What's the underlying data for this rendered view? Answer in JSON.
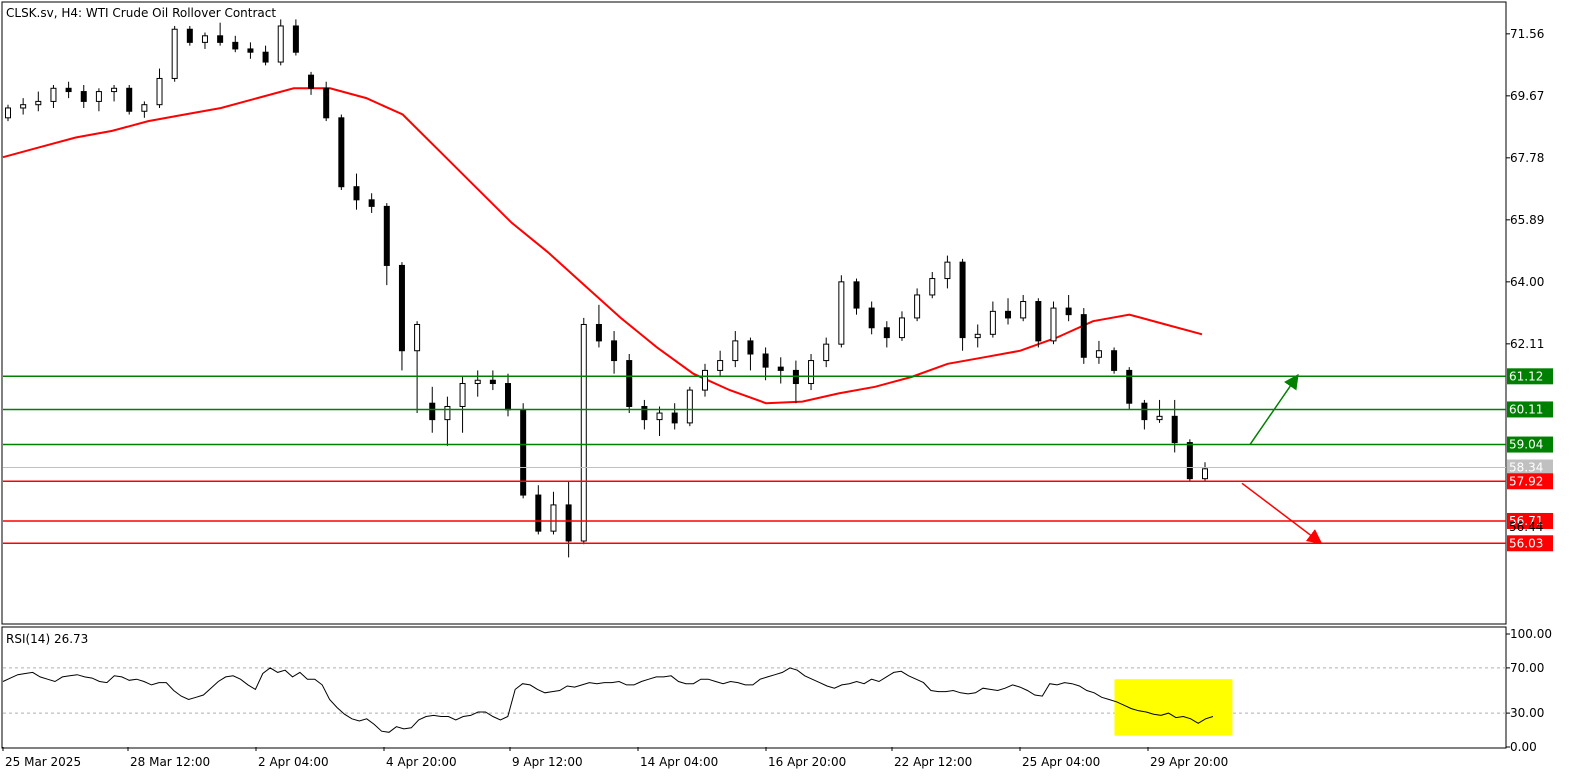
{
  "header": {
    "title": "CLSK.sv, H4:  WTI Crude Oil Rollover Contract"
  },
  "colors": {
    "support": "#ff0000",
    "resistance": "#008000",
    "ma_line": "#ff0000",
    "candle_bull": "#ffffff",
    "candle_bear": "#000000",
    "rsi_line": "#000000",
    "rsi_highlight": "#ffff00",
    "price_marker": "#c0c0c0"
  },
  "chart_data": [
    {
      "type": "candlestick",
      "title": "CLSK.sv, H4:  WTI Crude Oil Rollover Contract",
      "ylim": [
        53.6,
        72.5
      ],
      "y_ticks": [
        "71.56",
        "69.67",
        "67.78",
        "65.89",
        "64.00",
        "62.11"
      ],
      "x_ticks": [
        "25 Mar 2025",
        "28 Mar 12:00",
        "2 Apr 04:00",
        "4 Apr 20:00",
        "9 Apr 12:00",
        "14 Apr 04:00",
        "16 Apr 20:00",
        "22 Apr 12:00",
        "25 Apr 04:00",
        "29 Apr 20:00"
      ],
      "current_price": "58.34",
      "current_price_value": 58.34,
      "hidden_label": "56.44",
      "resistance_levels": [
        {
          "label": "61.12",
          "value": 61.12
        },
        {
          "label": "60.11",
          "value": 60.11
        },
        {
          "label": "59.04",
          "value": 59.04
        }
      ],
      "support_levels": [
        {
          "label": "57.92",
          "value": 57.92
        },
        {
          "label": "56.71",
          "value": 56.71
        },
        {
          "label": "56.03",
          "value": 56.03
        }
      ],
      "arrows": [
        {
          "direction": "up",
          "color": "green",
          "from": 59.04,
          "to": 61.12
        },
        {
          "direction": "down",
          "color": "red",
          "from": 57.92,
          "to": 56.03
        }
      ],
      "moving_average": [
        67.8,
        68.1,
        68.4,
        68.6,
        68.9,
        69.1,
        69.3,
        69.6,
        69.9,
        69.9,
        69.6,
        69.1,
        68.0,
        66.9,
        65.8,
        64.9,
        63.9,
        62.9,
        62.0,
        61.2,
        60.7,
        60.3,
        60.35,
        60.6,
        60.8,
        61.1,
        61.5,
        61.7,
        61.9,
        62.3,
        62.8,
        63.0,
        62.7,
        62.4
      ],
      "candles_ohlc": [
        [
          69.0,
          69.4,
          68.9,
          69.3
        ],
        [
          69.3,
          69.6,
          69.1,
          69.4
        ],
        [
          69.4,
          69.8,
          69.2,
          69.5
        ],
        [
          69.5,
          70.0,
          69.3,
          69.9
        ],
        [
          69.9,
          70.1,
          69.6,
          69.8
        ],
        [
          69.8,
          70.0,
          69.3,
          69.5
        ],
        [
          69.5,
          69.9,
          69.2,
          69.8
        ],
        [
          69.8,
          70.0,
          69.5,
          69.9
        ],
        [
          69.9,
          70.0,
          69.1,
          69.2
        ],
        [
          69.2,
          69.5,
          69.0,
          69.4
        ],
        [
          69.4,
          70.5,
          69.3,
          70.2
        ],
        [
          70.2,
          71.8,
          70.1,
          71.7
        ],
        [
          71.7,
          71.8,
          71.2,
          71.3
        ],
        [
          71.3,
          71.6,
          71.1,
          71.5
        ],
        [
          71.5,
          71.9,
          71.2,
          71.3
        ],
        [
          71.3,
          71.5,
          71.0,
          71.1
        ],
        [
          71.1,
          71.3,
          70.8,
          71.0
        ],
        [
          71.0,
          71.2,
          70.6,
          70.7
        ],
        [
          70.7,
          72.0,
          70.6,
          71.8
        ],
        [
          71.8,
          72.0,
          70.9,
          71.0
        ],
        [
          70.3,
          70.4,
          69.7,
          69.9
        ],
        [
          69.9,
          70.1,
          68.9,
          69.0
        ],
        [
          69.0,
          69.1,
          66.8,
          66.9
        ],
        [
          66.9,
          67.3,
          66.2,
          66.5
        ],
        [
          66.5,
          66.7,
          66.1,
          66.3
        ],
        [
          66.3,
          66.4,
          63.9,
          64.5
        ],
        [
          64.5,
          64.6,
          61.3,
          61.9
        ],
        [
          61.9,
          62.8,
          60.0,
          62.7
        ],
        [
          60.3,
          60.8,
          59.4,
          59.8
        ],
        [
          59.8,
          60.5,
          59.0,
          60.2
        ],
        [
          60.2,
          61.1,
          59.4,
          60.9
        ],
        [
          60.9,
          61.3,
          60.5,
          61.0
        ],
        [
          61.0,
          61.3,
          60.7,
          60.9
        ],
        [
          60.9,
          61.2,
          59.9,
          60.1
        ],
        [
          60.1,
          60.3,
          57.4,
          57.5
        ],
        [
          57.5,
          57.8,
          56.3,
          56.4
        ],
        [
          56.4,
          57.6,
          56.3,
          57.2
        ],
        [
          57.2,
          57.9,
          55.6,
          56.1
        ],
        [
          56.1,
          62.9,
          56.0,
          62.7
        ],
        [
          62.7,
          63.3,
          62.0,
          62.2
        ],
        [
          62.2,
          62.5,
          61.2,
          61.6
        ],
        [
          61.6,
          61.8,
          60.0,
          60.2
        ],
        [
          60.2,
          60.4,
          59.5,
          59.8
        ],
        [
          59.8,
          60.2,
          59.3,
          60.0
        ],
        [
          60.0,
          60.3,
          59.5,
          59.7
        ],
        [
          59.7,
          60.8,
          59.6,
          60.7
        ],
        [
          60.7,
          61.5,
          60.5,
          61.3
        ],
        [
          61.3,
          61.9,
          61.1,
          61.6
        ],
        [
          61.6,
          62.5,
          61.4,
          62.2
        ],
        [
          62.2,
          62.3,
          61.3,
          61.8
        ],
        [
          61.8,
          62.0,
          61.0,
          61.4
        ],
        [
          61.4,
          61.7,
          60.9,
          61.3
        ],
        [
          61.3,
          61.6,
          60.3,
          60.9
        ],
        [
          60.9,
          61.8,
          60.7,
          61.6
        ],
        [
          61.6,
          62.3,
          61.4,
          62.1
        ],
        [
          62.1,
          64.2,
          62.0,
          64.0
        ],
        [
          64.0,
          64.1,
          63.0,
          63.2
        ],
        [
          63.2,
          63.4,
          62.4,
          62.6
        ],
        [
          62.6,
          62.8,
          62.0,
          62.3
        ],
        [
          62.3,
          63.1,
          62.2,
          62.9
        ],
        [
          62.9,
          63.8,
          62.8,
          63.6
        ],
        [
          63.6,
          64.3,
          63.5,
          64.1
        ],
        [
          64.1,
          64.8,
          63.8,
          64.6
        ],
        [
          64.6,
          64.7,
          61.9,
          62.3
        ],
        [
          62.3,
          62.7,
          62.0,
          62.4
        ],
        [
          62.4,
          63.4,
          62.3,
          63.1
        ],
        [
          63.1,
          63.5,
          62.7,
          62.9
        ],
        [
          62.9,
          63.6,
          62.8,
          63.4
        ],
        [
          63.4,
          63.5,
          62.0,
          62.2
        ],
        [
          62.2,
          63.4,
          62.1,
          63.2
        ],
        [
          63.2,
          63.6,
          62.8,
          63.0
        ],
        [
          63.0,
          63.2,
          61.5,
          61.7
        ],
        [
          61.7,
          62.2,
          61.5,
          61.9
        ],
        [
          61.9,
          62.0,
          61.2,
          61.3
        ],
        [
          61.3,
          61.4,
          60.1,
          60.3
        ],
        [
          60.3,
          60.4,
          59.5,
          59.8
        ],
        [
          59.8,
          60.4,
          59.7,
          59.9
        ],
        [
          59.9,
          60.4,
          58.8,
          59.1
        ],
        [
          59.1,
          59.2,
          57.9,
          58.0
        ],
        [
          58.0,
          58.5,
          57.9,
          58.3
        ]
      ]
    },
    {
      "type": "line",
      "title": "RSI(14) 26.73",
      "name": "RSI(14)",
      "current": "26.73",
      "ylim": [
        0,
        100
      ],
      "y_ticks": [
        "100.00",
        "70.00",
        "30.00",
        "0.00"
      ],
      "levels": [
        70,
        30
      ],
      "values": [
        58,
        61,
        64,
        65,
        66,
        62,
        60,
        58,
        62,
        63,
        64,
        62,
        61,
        58,
        57,
        63,
        62,
        59,
        60,
        58,
        55,
        57,
        57,
        50,
        45,
        42,
        44,
        46,
        52,
        58,
        62,
        63,
        60,
        55,
        51,
        65,
        70,
        66,
        68,
        62,
        66,
        60,
        60,
        55,
        42,
        35,
        29,
        25,
        23,
        25,
        20,
        14,
        13,
        18,
        16,
        17,
        24,
        27,
        28,
        27,
        27,
        24,
        27,
        28,
        31,
        31,
        27,
        24,
        27,
        51,
        56,
        55,
        51,
        48,
        49,
        50,
        54,
        53,
        55,
        57,
        56,
        57,
        57,
        58,
        55,
        55,
        58,
        60,
        62,
        62,
        63,
        58,
        56,
        56,
        60,
        60,
        58,
        56,
        58,
        57,
        55,
        55,
        60,
        62,
        64,
        66,
        70,
        68,
        63,
        60,
        57,
        54,
        52,
        55,
        56,
        58,
        56,
        60,
        58,
        62,
        66,
        67,
        63,
        60,
        57,
        50,
        49,
        49,
        50,
        48,
        47,
        48,
        52,
        51,
        50,
        52,
        55,
        53,
        50,
        46,
        45,
        56,
        55,
        57,
        56,
        54,
        50,
        48,
        44,
        42,
        40,
        37,
        34,
        32,
        31,
        29,
        28,
        30,
        26,
        27,
        25,
        21,
        25,
        27
      ],
      "highlight": {
        "from_index": 150,
        "to_index": 164,
        "ymin": 10,
        "ymax": 60
      }
    }
  ]
}
